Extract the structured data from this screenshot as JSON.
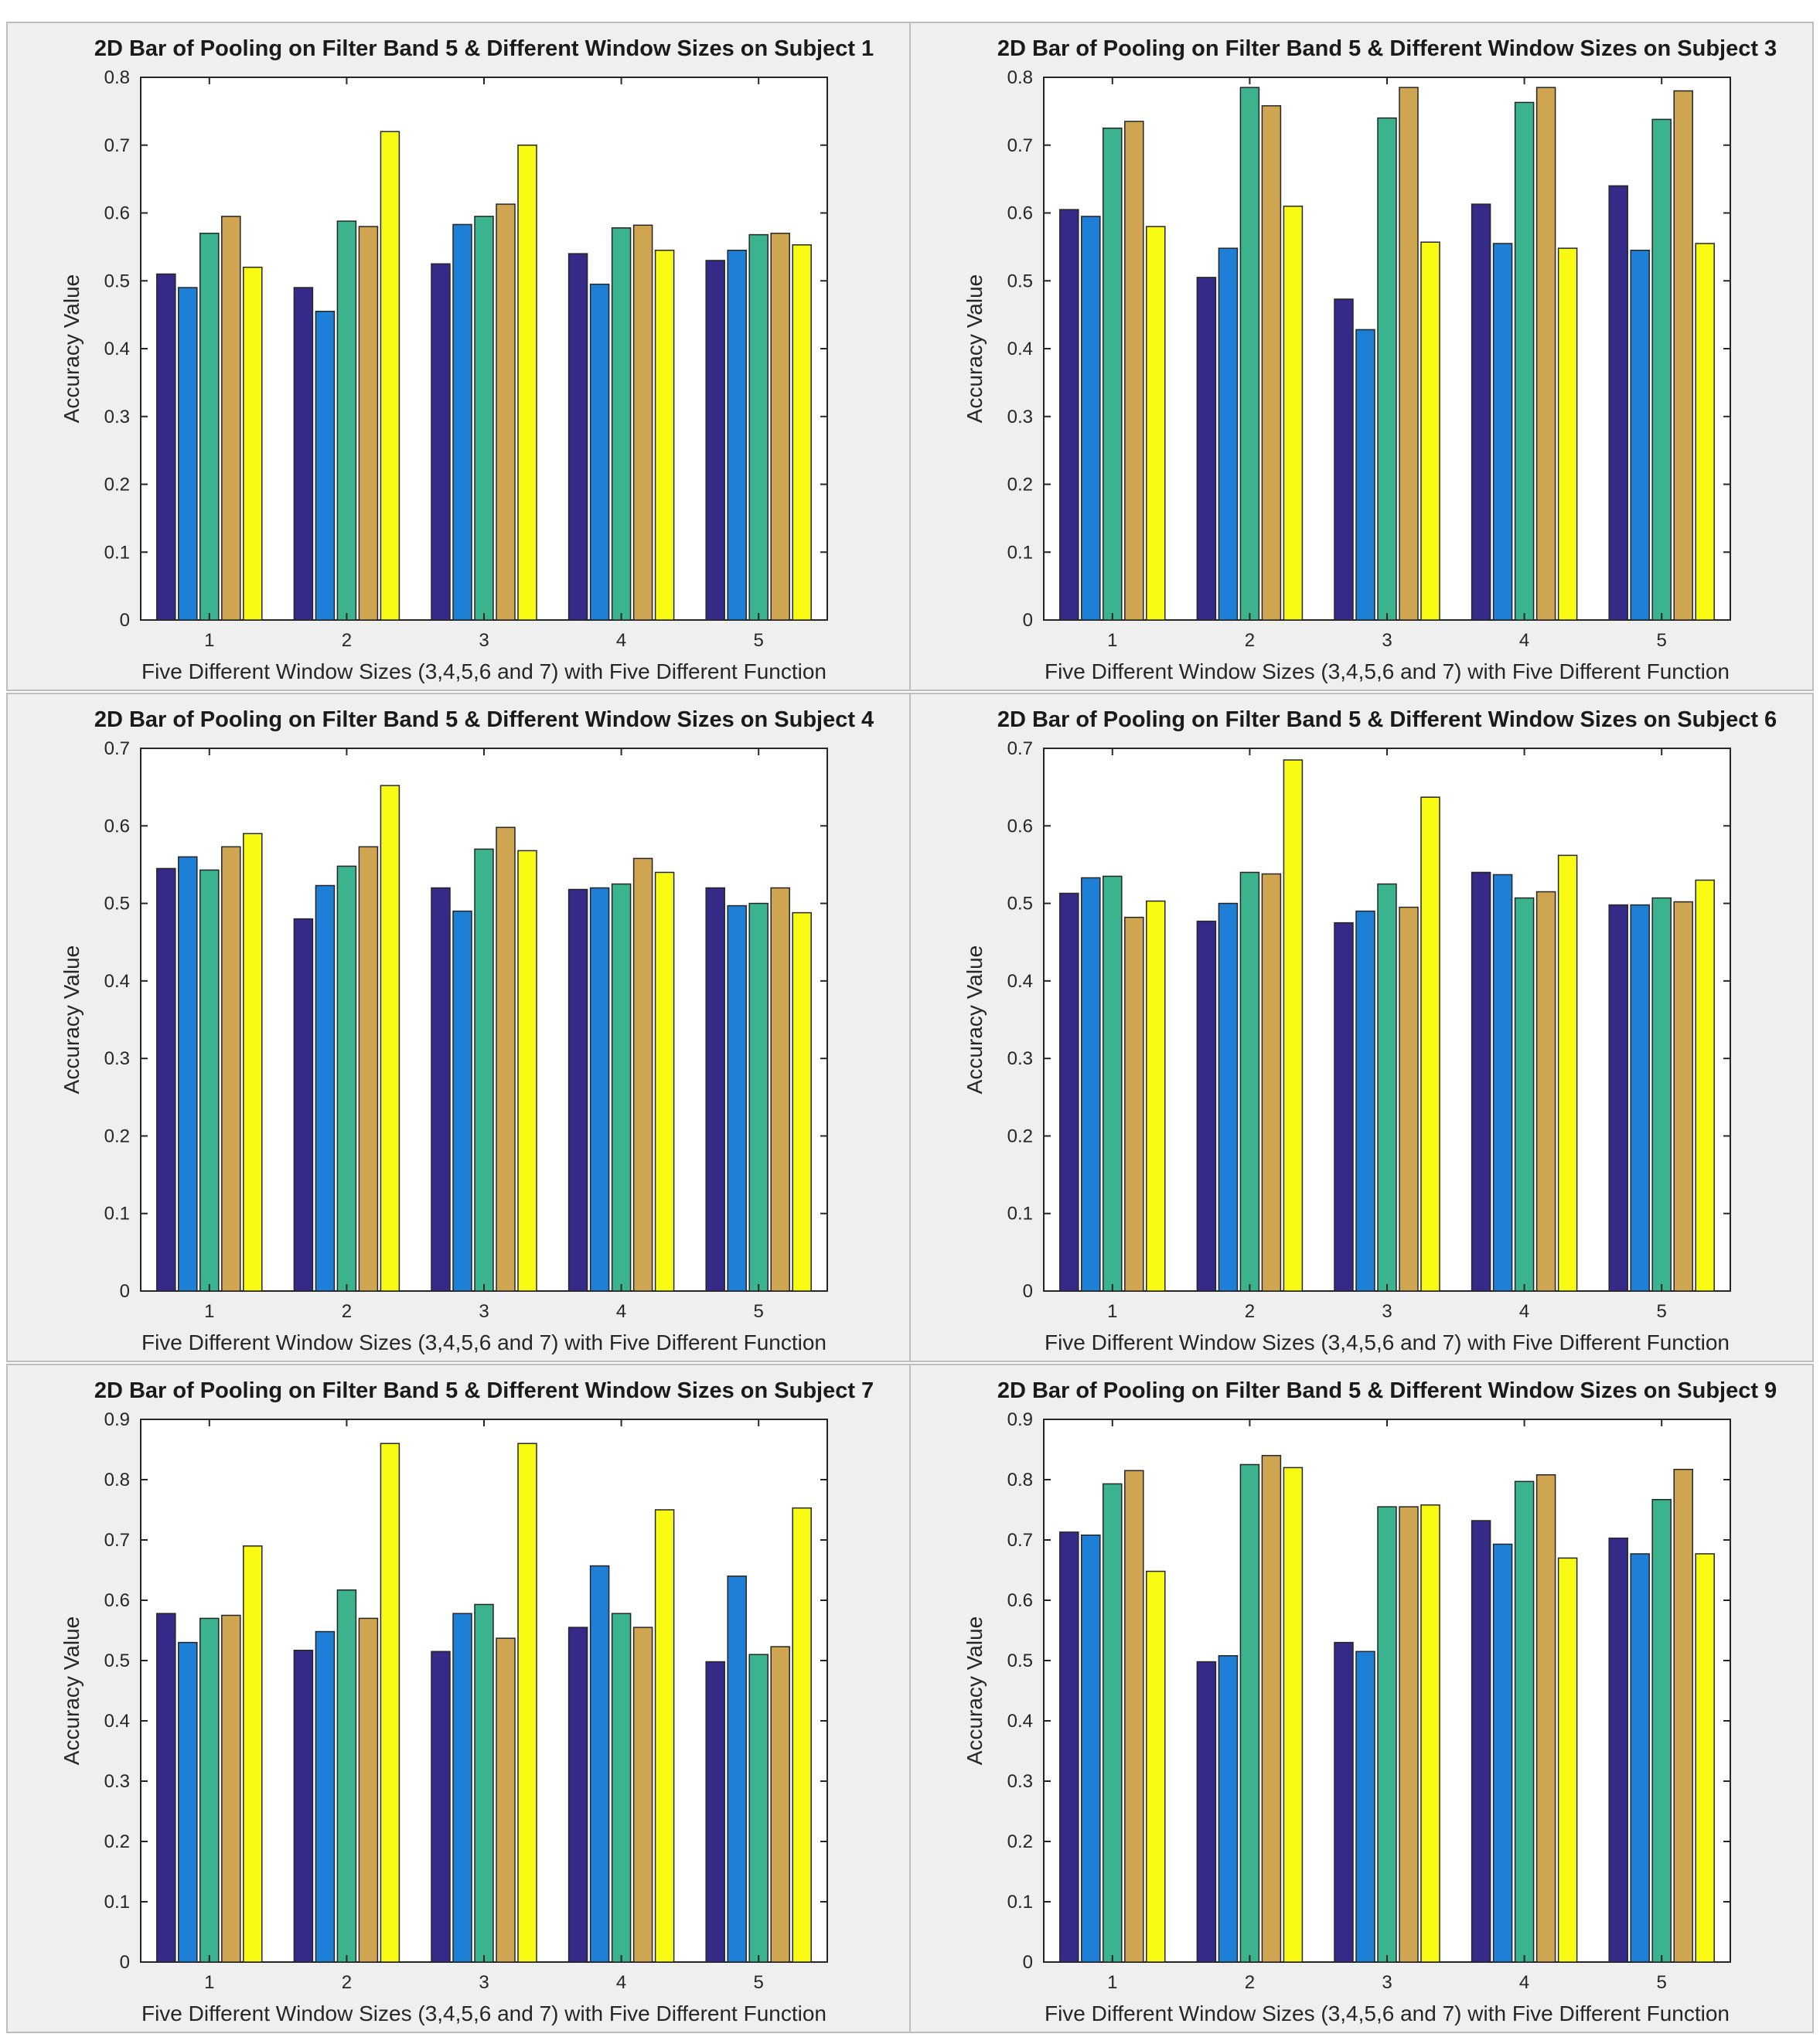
{
  "colors": [
    "#352a87",
    "#1e7fd6",
    "#3bb38f",
    "#cfa552",
    "#f9fa14"
  ],
  "chart_data": [
    {
      "type": "bar",
      "title": "2D Bar of Pooling on Filter Band 5 & Different Window Sizes on Subject 1",
      "xlabel": "Five Different Window Sizes (3,4,5,6 and 7) with Five Different Function",
      "ylabel": "Accuracy Value",
      "ylim": [
        0,
        0.8
      ],
      "yticks": [
        "0",
        "0.1",
        "0.2",
        "0.3",
        "0.4",
        "0.5",
        "0.6",
        "0.7",
        "0.8"
      ],
      "categories": [
        "1",
        "2",
        "3",
        "4",
        "5"
      ],
      "values": [
        [
          0.51,
          0.49,
          0.57,
          0.595,
          0.52
        ],
        [
          0.49,
          0.455,
          0.588,
          0.58,
          0.72
        ],
        [
          0.525,
          0.583,
          0.595,
          0.613,
          0.7
        ],
        [
          0.54,
          0.495,
          0.578,
          0.582,
          0.545
        ],
        [
          0.53,
          0.545,
          0.568,
          0.57,
          0.553
        ]
      ]
    },
    {
      "type": "bar",
      "title": "2D Bar of Pooling on Filter Band 5 & Different Window Sizes on Subject 3",
      "xlabel": "Five Different Window Sizes (3,4,5,6 and 7) with Five Different Function",
      "ylabel": "Accuracy Value",
      "ylim": [
        0,
        0.8
      ],
      "yticks": [
        "0",
        "0.1",
        "0.2",
        "0.3",
        "0.4",
        "0.5",
        "0.6",
        "0.7",
        "0.8"
      ],
      "categories": [
        "1",
        "2",
        "3",
        "4",
        "5"
      ],
      "values": [
        [
          0.605,
          0.595,
          0.725,
          0.735,
          0.58
        ],
        [
          0.505,
          0.548,
          0.785,
          0.758,
          0.61
        ],
        [
          0.473,
          0.428,
          0.74,
          0.785,
          0.557
        ],
        [
          0.613,
          0.555,
          0.763,
          0.785,
          0.548
        ],
        [
          0.64,
          0.545,
          0.738,
          0.78,
          0.555
        ]
      ]
    },
    {
      "type": "bar",
      "title": "2D Bar of Pooling on Filter Band 5 & Different Window Sizes on Subject 4",
      "xlabel": "Five Different Window Sizes (3,4,5,6 and 7) with Five Different Function",
      "ylabel": "Accuracy Value",
      "ylim": [
        0,
        0.7
      ],
      "yticks": [
        "0",
        "0.1",
        "0.2",
        "0.3",
        "0.4",
        "0.5",
        "0.6",
        "0.7"
      ],
      "categories": [
        "1",
        "2",
        "3",
        "4",
        "5"
      ],
      "values": [
        [
          0.545,
          0.56,
          0.543,
          0.573,
          0.59
        ],
        [
          0.48,
          0.523,
          0.548,
          0.573,
          0.652
        ],
        [
          0.52,
          0.49,
          0.57,
          0.598,
          0.568
        ],
        [
          0.518,
          0.52,
          0.525,
          0.558,
          0.54
        ],
        [
          0.52,
          0.497,
          0.5,
          0.52,
          0.488
        ]
      ]
    },
    {
      "type": "bar",
      "title": "2D Bar of Pooling on Filter Band 5 & Different Window Sizes on Subject 6",
      "xlabel": "Five Different Window Sizes (3,4,5,6 and 7) with Five Different Function",
      "ylabel": "Accuracy Value",
      "ylim": [
        0,
        0.7
      ],
      "yticks": [
        "0",
        "0.1",
        "0.2",
        "0.3",
        "0.4",
        "0.5",
        "0.6",
        "0.7"
      ],
      "categories": [
        "1",
        "2",
        "3",
        "4",
        "5"
      ],
      "values": [
        [
          0.513,
          0.533,
          0.535,
          0.482,
          0.503
        ],
        [
          0.477,
          0.5,
          0.54,
          0.538,
          0.685
        ],
        [
          0.475,
          0.49,
          0.525,
          0.495,
          0.637
        ],
        [
          0.54,
          0.537,
          0.507,
          0.515,
          0.562
        ],
        [
          0.498,
          0.498,
          0.507,
          0.502,
          0.53
        ]
      ]
    },
    {
      "type": "bar",
      "title": "2D Bar of Pooling on Filter Band 5 & Different Window Sizes on Subject 7",
      "xlabel": "Five Different Window Sizes (3,4,5,6 and 7) with Five Different Function",
      "ylabel": "Accuracy Value",
      "ylim": [
        0,
        0.9
      ],
      "yticks": [
        "0",
        "0.1",
        "0.2",
        "0.3",
        "0.4",
        "0.5",
        "0.6",
        "0.7",
        "0.8",
        "0.9"
      ],
      "categories": [
        "1",
        "2",
        "3",
        "4",
        "5"
      ],
      "values": [
        [
          0.578,
          0.53,
          0.57,
          0.575,
          0.69
        ],
        [
          0.517,
          0.548,
          0.617,
          0.57,
          0.86
        ],
        [
          0.515,
          0.578,
          0.593,
          0.537,
          0.86
        ],
        [
          0.555,
          0.657,
          0.578,
          0.555,
          0.75
        ],
        [
          0.498,
          0.64,
          0.51,
          0.523,
          0.753
        ]
      ]
    },
    {
      "type": "bar",
      "title": "2D Bar of Pooling on Filter Band 5 & Different Window Sizes on Subject 9",
      "xlabel": "Five Different Window Sizes (3,4,5,6 and 7) with Five Different Function",
      "ylabel": "Accuracy Value",
      "ylim": [
        0,
        0.9
      ],
      "yticks": [
        "0",
        "0.1",
        "0.2",
        "0.3",
        "0.4",
        "0.5",
        "0.6",
        "0.7",
        "0.8",
        "0.9"
      ],
      "categories": [
        "1",
        "2",
        "3",
        "4",
        "5"
      ],
      "values": [
        [
          0.713,
          0.708,
          0.793,
          0.815,
          0.648
        ],
        [
          0.498,
          0.508,
          0.825,
          0.84,
          0.82
        ],
        [
          0.53,
          0.515,
          0.755,
          0.755,
          0.758
        ],
        [
          0.732,
          0.693,
          0.797,
          0.808,
          0.67
        ],
        [
          0.703,
          0.677,
          0.767,
          0.817,
          0.677
        ]
      ]
    }
  ]
}
